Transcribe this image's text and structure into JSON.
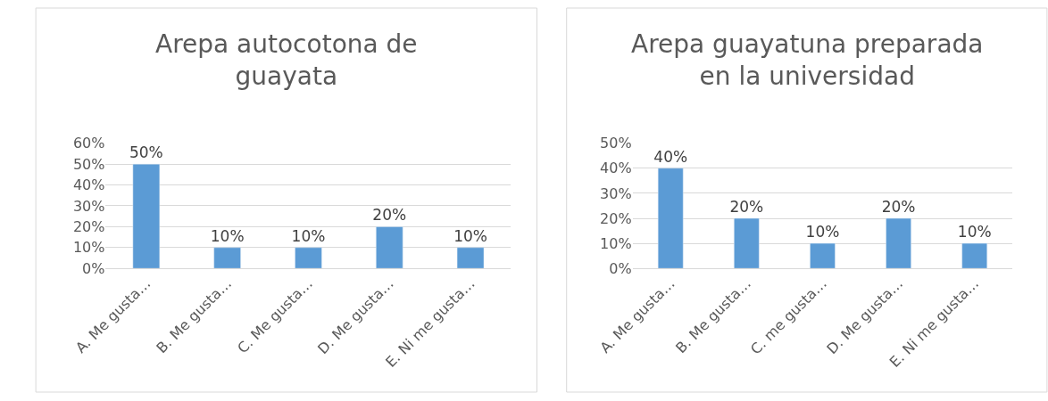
{
  "chart_data": [
    {
      "type": "bar",
      "title": "Arepa autocotona de guayata",
      "categories": [
        "A. Me gusta…",
        "B. Me gusta…",
        "C. Me gusta…",
        "D. Me gusta…",
        "E. Ni me gusta…"
      ],
      "values": [
        50,
        10,
        10,
        20,
        10
      ],
      "value_labels": [
        "50%",
        "10%",
        "10%",
        "20%",
        "10%"
      ],
      "color": "#5b9bd5",
      "ylim": [
        0,
        60
      ],
      "yticks": [
        {
          "value": 0,
          "label": "0%"
        },
        {
          "value": 10,
          "label": "10%"
        },
        {
          "value": 20,
          "label": "20%"
        },
        {
          "value": 30,
          "label": "30%"
        },
        {
          "value": 40,
          "label": "40%"
        },
        {
          "value": 50,
          "label": "50%"
        },
        {
          "value": 60,
          "label": "60%"
        }
      ],
      "grid": "y"
    },
    {
      "type": "bar",
      "title": "Arepa guayatuna preparada en la universidad",
      "categories": [
        "A. Me gusta…",
        "B. Me gusta…",
        "C. me gusta…",
        "D. Me gusta…",
        "E. Ni me gusta…"
      ],
      "values": [
        40,
        20,
        10,
        20,
        10
      ],
      "value_labels": [
        "40%",
        "20%",
        "10%",
        "20%",
        "10%"
      ],
      "color": "#5b9bd5",
      "ylim": [
        0,
        50
      ],
      "yticks": [
        {
          "value": 0,
          "label": "0%"
        },
        {
          "value": 10,
          "label": "10%"
        },
        {
          "value": 20,
          "label": "20%"
        },
        {
          "value": 30,
          "label": "30%"
        },
        {
          "value": 40,
          "label": "40%"
        },
        {
          "value": 50,
          "label": "50%"
        }
      ],
      "grid": "y"
    }
  ]
}
